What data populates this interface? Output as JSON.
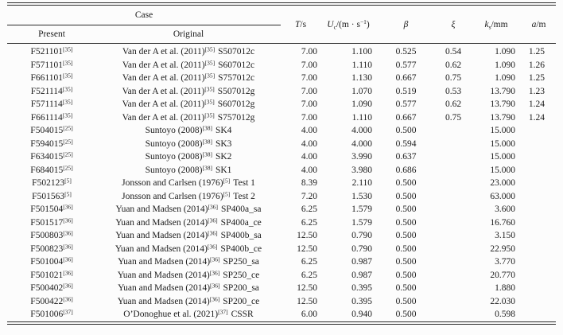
{
  "colors": {
    "text": "#1b1b1b",
    "rule": "#2b2b2b",
    "background": "#fcfcfc"
  },
  "table": {
    "header": {
      "case_label": "Case",
      "present_label": "Present",
      "original_label": "Original",
      "cols": [
        {
          "it": "T",
          "sub": "",
          "rest": "/s",
          "sup": "",
          "rest2": ""
        },
        {
          "it": "U",
          "sub": "c",
          "rest": "/(m · s",
          "sup": "−1",
          "rest2": ")"
        },
        {
          "it": "β",
          "sub": "",
          "rest": "",
          "sup": "",
          "rest2": ""
        },
        {
          "it": "ξ",
          "sub": "",
          "rest": "",
          "sup": "",
          "rest2": ""
        },
        {
          "it": "k",
          "sub": "s",
          "rest": "/mm",
          "sup": "",
          "rest2": ""
        },
        {
          "it": "a",
          "sub": "",
          "rest": "/m",
          "sup": "",
          "rest2": ""
        }
      ]
    },
    "rows": [
      {
        "pid": "F521101",
        "pref": "[35]",
        "opre": "Van der A et al. (2011)",
        "oref": "[35]",
        "opost": "S507012c",
        "T": "7.00",
        "Uc": "1.100",
        "beta": "0.525",
        "xi": "0.54",
        "ks": "1.090",
        "a": "1.25"
      },
      {
        "pid": "F571101",
        "pref": "[35]",
        "opre": "Van der A et al. (2011)",
        "oref": "[35]",
        "opost": "S607012c",
        "T": "7.00",
        "Uc": "1.110",
        "beta": "0.577",
        "xi": "0.62",
        "ks": "1.090",
        "a": "1.26"
      },
      {
        "pid": "F661101",
        "pref": "[35]",
        "opre": "Van der A et al. (2011)",
        "oref": "[35]",
        "opost": "S757012c",
        "T": "7.00",
        "Uc": "1.130",
        "beta": "0.667",
        "xi": "0.75",
        "ks": "1.090",
        "a": "1.25"
      },
      {
        "pid": "F521114",
        "pref": "[35]",
        "opre": "Van der A et al. (2011)",
        "oref": "[35]",
        "opost": "S507012g",
        "T": "7.00",
        "Uc": "1.070",
        "beta": "0.519",
        "xi": "0.53",
        "ks": "13.790",
        "a": "1.23"
      },
      {
        "pid": "F571114",
        "pref": "[35]",
        "opre": "Van der A et al. (2011)",
        "oref": "[35]",
        "opost": "S607012g",
        "T": "7.00",
        "Uc": "1.090",
        "beta": "0.577",
        "xi": "0.62",
        "ks": "13.790",
        "a": "1.24"
      },
      {
        "pid": "F661114",
        "pref": "[35]",
        "opre": "Van der A et al. (2011)",
        "oref": "[35]",
        "opost": "S757012g",
        "T": "7.00",
        "Uc": "1.110",
        "beta": "0.667",
        "xi": "0.75",
        "ks": "13.790",
        "a": "1.24"
      },
      {
        "pid": "F504015",
        "pref": "[25]",
        "opre": "Suntoyo (2008)",
        "oref": "[38]",
        "opost": "SK4",
        "T": "4.00",
        "Uc": "4.000",
        "beta": "0.500",
        "xi": "",
        "ks": "15.000",
        "a": ""
      },
      {
        "pid": "F594015",
        "pref": "[25]",
        "opre": "Suntoyo (2008)",
        "oref": "[38]",
        "opost": "SK3",
        "T": "4.00",
        "Uc": "4.000",
        "beta": "0.594",
        "xi": "",
        "ks": "15.000",
        "a": ""
      },
      {
        "pid": "F634015",
        "pref": "[25]",
        "opre": "Suntoyo (2008)",
        "oref": "[38]",
        "opost": "SK2",
        "T": "4.00",
        "Uc": "3.990",
        "beta": "0.637",
        "xi": "",
        "ks": "15.000",
        "a": ""
      },
      {
        "pid": "F684015",
        "pref": "[25]",
        "opre": "Suntoyo (2008)",
        "oref": "[38]",
        "opost": "SK1",
        "T": "4.00",
        "Uc": "3.980",
        "beta": "0.686",
        "xi": "",
        "ks": "15.000",
        "a": ""
      },
      {
        "pid": "F502123",
        "pref": "[5]",
        "opre": "Jonsson and Carlsen (1976)",
        "oref": "[5]",
        "opost": "Test 1",
        "T": "8.39",
        "Uc": "2.110",
        "beta": "0.500",
        "xi": "",
        "ks": "23.000",
        "a": ""
      },
      {
        "pid": "F501563",
        "pref": "[5]",
        "opre": "Jonsson and Carlsen (1976)",
        "oref": "[5]",
        "opost": "Test 2",
        "T": "7.20",
        "Uc": "1.530",
        "beta": "0.500",
        "xi": "",
        "ks": "63.000",
        "a": ""
      },
      {
        "pid": "F501504",
        "pref": "[36]",
        "opre": "Yuan and Madsen (2014)",
        "oref": "[36]",
        "opost": "SP400a_sa",
        "T": "6.25",
        "Uc": "1.579",
        "beta": "0.500",
        "xi": "",
        "ks": "3.600",
        "a": ""
      },
      {
        "pid": "F501517",
        "pref": "[36]",
        "opre": "Yuan and Madsen (2014)",
        "oref": "[36]",
        "opost": "SP400a_ce",
        "T": "6.25",
        "Uc": "1.579",
        "beta": "0.500",
        "xi": "",
        "ks": "16.760",
        "a": ""
      },
      {
        "pid": "F500803",
        "pref": "[36]",
        "opre": "Yuan and Madsen (2014)",
        "oref": "[36]",
        "opost": "SP400b_sa",
        "T": "12.50",
        "Uc": "0.790",
        "beta": "0.500",
        "xi": "",
        "ks": "3.150",
        "a": ""
      },
      {
        "pid": "F500823",
        "pref": "[36]",
        "opre": "Yuan and Madsen (2014)",
        "oref": "[36]",
        "opost": "SP400b_ce",
        "T": "12.50",
        "Uc": "0.790",
        "beta": "0.500",
        "xi": "",
        "ks": "22.950",
        "a": ""
      },
      {
        "pid": "F501004",
        "pref": "[36]",
        "opre": "Yuan and Madsen (2014)",
        "oref": "[36]",
        "opost": "SP250_sa",
        "T": "6.25",
        "Uc": "0.987",
        "beta": "0.500",
        "xi": "",
        "ks": "3.770",
        "a": ""
      },
      {
        "pid": "F501021",
        "pref": "[36]",
        "opre": "Yuan and Madsen (2014)",
        "oref": "[36]",
        "opost": "SP250_ce",
        "T": "6.25",
        "Uc": "0.987",
        "beta": "0.500",
        "xi": "",
        "ks": "20.770",
        "a": ""
      },
      {
        "pid": "F500402",
        "pref": "[36]",
        "opre": "Yuan and Madsen (2014)",
        "oref": "[36]",
        "opost": "SP200_sa",
        "T": "12.50",
        "Uc": "0.395",
        "beta": "0.500",
        "xi": "",
        "ks": "1.880",
        "a": ""
      },
      {
        "pid": "F500422",
        "pref": "[36]",
        "opre": "Yuan and Madsen (2014)",
        "oref": "[36]",
        "opost": "SP200_ce",
        "T": "12.50",
        "Uc": "0.395",
        "beta": "0.500",
        "xi": "",
        "ks": "22.030",
        "a": ""
      },
      {
        "pid": "F501006",
        "pref": "[37]",
        "opre": "O’Donoghue et al. (2021)",
        "oref": "[37]",
        "opost": "CSSR",
        "T": "6.00",
        "Uc": "0.940",
        "beta": "0.500",
        "xi": "",
        "ks": "0.598",
        "a": ""
      }
    ]
  }
}
